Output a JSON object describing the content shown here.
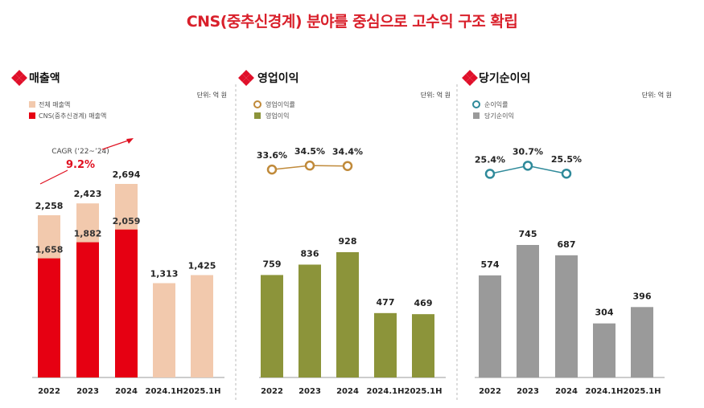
{
  "page_title": "CNS(중추신경계) 분야를 중심으로 고수익 구조 확립",
  "colors": {
    "title_red": "#d9202b",
    "icon_red": "#e0102a",
    "sales_total": "#f2c9ad",
    "sales_cns": "#e60012",
    "op_bar": "#8c943a",
    "op_line": "#c08a3a",
    "net_bar": "#9a9a9a",
    "net_line": "#2f8a9a"
  },
  "chart_data": [
    {
      "type": "bar",
      "title": "매출액",
      "unit": "단위: 억 원",
      "categories": [
        "2022",
        "2023",
        "2024",
        "2024.1H",
        "2025.1H"
      ],
      "series": [
        {
          "name": "전체 매출액",
          "values": [
            2258,
            2423,
            2694,
            1313,
            1425
          ]
        },
        {
          "name": "CNS(중추신경계) 매출액",
          "values": [
            1658,
            1882,
            2059,
            null,
            null
          ]
        }
      ],
      "value_labels": [
        "2,258",
        "2,423",
        "2,694",
        "1,313",
        "1,425"
      ],
      "inner_labels": [
        "1,658",
        "1,882",
        "2,059"
      ],
      "annotation": {
        "label": "CAGR (‘22~’24)",
        "value": "9.2%"
      },
      "ylim": [
        0,
        3000
      ]
    },
    {
      "type": "bar",
      "title": "영업이익",
      "unit": "단위: 억 원",
      "categories": [
        "2022",
        "2023",
        "2024",
        "2024.1H",
        "2025.1H"
      ],
      "series": [
        {
          "name": "영업이익",
          "values": [
            759,
            836,
            928,
            477,
            469
          ]
        }
      ],
      "value_labels": [
        "759",
        "836",
        "928",
        "477",
        "469"
      ],
      "line_series": {
        "name": "영업이익률",
        "values": [
          33.6,
          34.5,
          34.4
        ],
        "labels": [
          "33.6%",
          "34.5%",
          "34.4%"
        ]
      },
      "ylim": [
        0,
        1500
      ]
    },
    {
      "type": "bar",
      "title": "당기순이익",
      "unit": "단위: 억 원",
      "categories": [
        "2022",
        "2023",
        "2024",
        "2024.1H",
        "2025.1H"
      ],
      "series": [
        {
          "name": "당기순이익",
          "values": [
            574,
            745,
            687,
            304,
            396
          ]
        }
      ],
      "value_labels": [
        "574",
        "745",
        "687",
        "304",
        "396"
      ],
      "line_series": {
        "name": "순이익률",
        "values": [
          25.4,
          30.7,
          25.5
        ],
        "labels": [
          "25.4%",
          "30.7%",
          "25.5%"
        ]
      },
      "ylim": [
        0,
        1100
      ]
    }
  ]
}
